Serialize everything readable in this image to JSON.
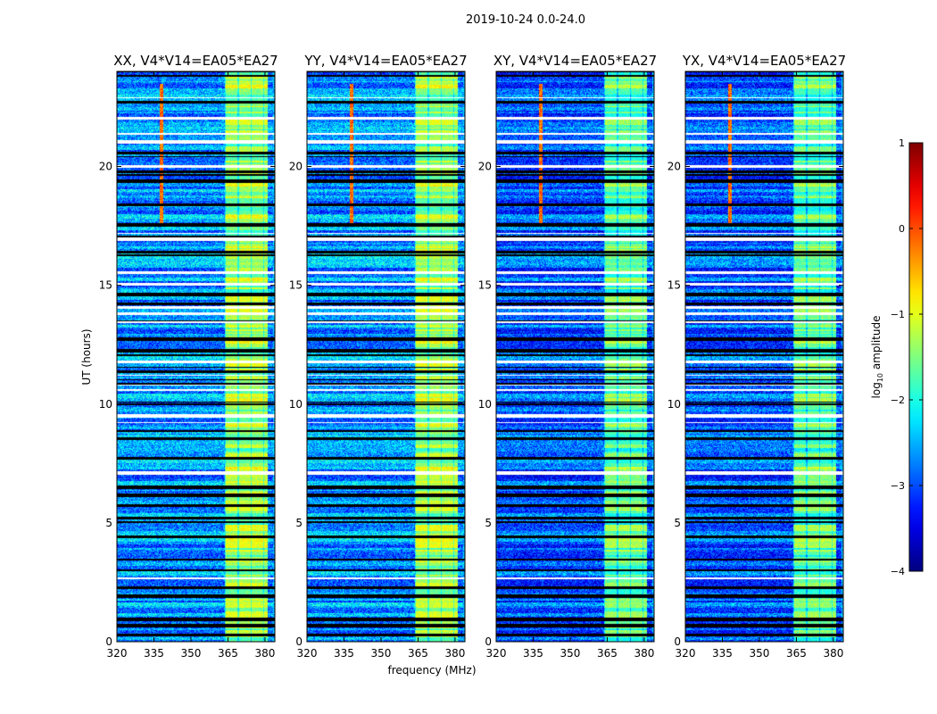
{
  "chart_data": {
    "type": "heatmap",
    "suptitle": "2019-10-24 0.0-24.0",
    "xlabel": "frequency (MHz)",
    "ylabel": "UT (hours)",
    "xlim": [
      320,
      384
    ],
    "ylim": [
      0,
      24
    ],
    "xticks": [
      320,
      335,
      350,
      365,
      380
    ],
    "yticks": [
      0,
      5,
      10,
      15,
      20
    ],
    "panels": [
      {
        "title": "XX, V4*V14=EA05*EA27",
        "seed": 11
      },
      {
        "title": "YY, V4*V14=EA05*EA27",
        "seed": 23
      },
      {
        "title": "XY, V4*V14=EA05*EA27",
        "seed": 37
      },
      {
        "title": "YX, V4*V14=EA05*EA27",
        "seed": 41
      }
    ],
    "colorbar": {
      "label": "log10 amplitude",
      "label_main": "log",
      "label_sub": "10",
      "label_rest": " amplitude",
      "colormap": "jet",
      "range": [
        -4,
        1
      ],
      "ticks": [
        -4,
        -3,
        -2,
        -1,
        0,
        1
      ],
      "tick_labels": [
        "−4",
        "−3",
        "−2",
        "−1",
        "0",
        "1"
      ]
    },
    "features": {
      "bright_band_mhz": [
        363.5,
        381
      ],
      "rfi_line_mhz": 338,
      "rfi_hours": [
        17.5,
        23.5
      ],
      "flagged_fraction": 0.17
    }
  }
}
